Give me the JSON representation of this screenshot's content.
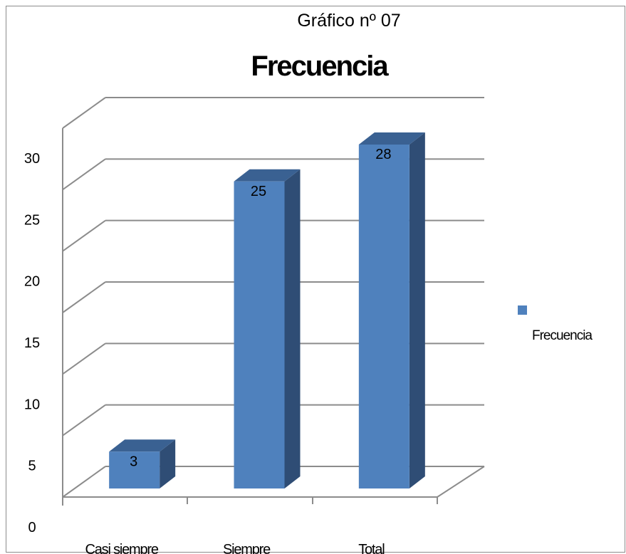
{
  "caption": "Gráfico nº 07",
  "chart_data": {
    "type": "bar",
    "title": "Frecuencia",
    "categories": [
      "Casi siempre",
      "Siempre",
      "Total"
    ],
    "series": [
      {
        "name": "Frecuencia",
        "values": [
          3,
          25,
          28
        ]
      }
    ],
    "data_labels": [
      "3",
      "25",
      "28"
    ],
    "ylim": [
      0,
      30
    ],
    "yticks": [
      "0",
      "5",
      "10",
      "15",
      "20",
      "25",
      "30"
    ],
    "grid": true,
    "legend_position": "right",
    "style": "3d-column",
    "colors": {
      "front": "#4f81bd",
      "top": "#3a6192",
      "side": "#2f4d75",
      "gridline": "#8c8c8c"
    }
  }
}
